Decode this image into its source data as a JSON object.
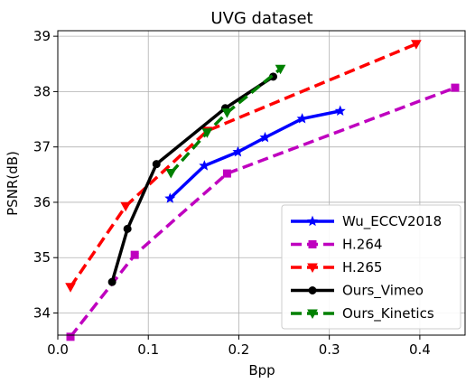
{
  "chart_data": {
    "type": "line",
    "title": "UVG dataset",
    "xlabel": "Bpp",
    "ylabel": "PSNR(dB)",
    "xlim": [
      0.0,
      0.45
    ],
    "ylim": [
      33.6,
      39.1
    ],
    "xticks": [
      "0.0",
      "0.1",
      "0.2",
      "0.3",
      "0.4"
    ],
    "yticks": [
      "34",
      "35",
      "36",
      "37",
      "38",
      "39"
    ],
    "xtick_values": [
      0.0,
      0.1,
      0.2,
      0.3,
      0.4
    ],
    "ytick_values": [
      34,
      35,
      36,
      37,
      38,
      39
    ],
    "grid": true,
    "legend_position": "bottom-right",
    "series": [
      {
        "name": "Wu_ECCV2018",
        "color": "#0000ff",
        "dashed": false,
        "marker": "star",
        "x": [
          0.124,
          0.162,
          0.199,
          0.229,
          0.27,
          0.312
        ],
        "y": [
          36.07,
          36.66,
          36.91,
          37.17,
          37.51,
          37.65
        ]
      },
      {
        "name": "H.264",
        "color": "#bf00bf",
        "dashed": true,
        "marker": "square",
        "x": [
          0.014,
          0.085,
          0.187,
          0.439
        ],
        "y": [
          33.57,
          35.05,
          36.52,
          38.07
        ]
      },
      {
        "name": "H.265",
        "color": "#ff0000",
        "dashed": true,
        "marker": "triangle-down",
        "x": [
          0.014,
          0.075,
          0.165,
          0.396
        ],
        "y": [
          34.47,
          35.93,
          37.29,
          38.86
        ]
      },
      {
        "name": "Ours_Vimeo",
        "color": "#000000",
        "dashed": false,
        "marker": "circle",
        "x": [
          0.06,
          0.077,
          0.109,
          0.185,
          0.238
        ],
        "y": [
          34.56,
          35.52,
          36.69,
          37.7,
          38.27
        ]
      },
      {
        "name": "Ours_Kinetics",
        "color": "#008000",
        "dashed": true,
        "marker": "triangle-down",
        "x": [
          0.125,
          0.165,
          0.187,
          0.246
        ],
        "y": [
          36.53,
          37.26,
          37.62,
          38.41
        ]
      }
    ]
  }
}
